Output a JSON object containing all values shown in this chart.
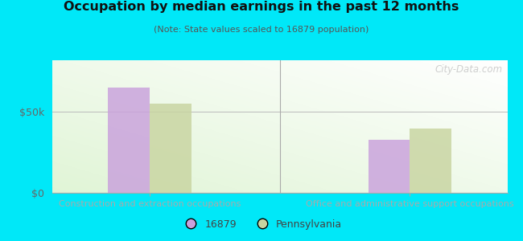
{
  "title": "Occupation by median earnings in the past 12 months",
  "subtitle": "(Note: State values scaled to 16879 population)",
  "categories": [
    "Construction and extraction occupations",
    "Office and administrative support occupations"
  ],
  "series_16879": [
    65000,
    33000
  ],
  "series_pa": [
    55000,
    40000
  ],
  "color_16879": "#c9a0dc",
  "color_pa": "#c8d4a0",
  "legend_labels": [
    "16879",
    "Pennsylvania"
  ],
  "ytick_vals": [
    0,
    50000
  ],
  "ytick_labels": [
    "$0",
    "$50k"
  ],
  "ylim": [
    0,
    82000
  ],
  "bg_outer": "#00e8f8",
  "bar_width": 0.32,
  "group_positions": [
    1.0,
    3.0
  ],
  "xlim": [
    0.25,
    3.75
  ],
  "watermark": "City-Data.com",
  "separator_x": 2.0
}
